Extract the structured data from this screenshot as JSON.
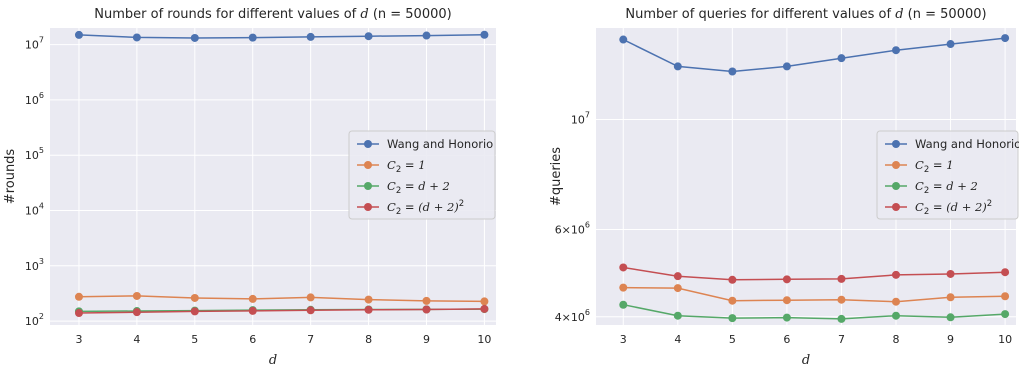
{
  "chart_data": [
    {
      "type": "line",
      "title": "Number of rounds for different values of d (n = 50000)",
      "title_parts": {
        "prefix": "Number of rounds for different values of ",
        "var": "d",
        "suffix": "(n = 50000)"
      },
      "xlabel": "d",
      "ylabel": "#rounds",
      "yscale": "log",
      "ylim": [
        85,
        20000000
      ],
      "y_ticks": [
        {
          "value": 100,
          "base": "10",
          "exp": "2"
        },
        {
          "value": 1000,
          "base": "10",
          "exp": "3"
        },
        {
          "value": 10000,
          "base": "10",
          "exp": "4"
        },
        {
          "value": 100000,
          "base": "10",
          "exp": "5"
        },
        {
          "value": 1000000,
          "base": "10",
          "exp": "6"
        },
        {
          "value": 10000000,
          "base": "10",
          "exp": "7"
        }
      ],
      "x": [
        3,
        4,
        5,
        6,
        7,
        8,
        9,
        10
      ],
      "grid": true,
      "legend_position": "center-right",
      "series": [
        {
          "name": "Wang and Honorio",
          "color": "#4c72b0",
          "values": [
            15000000,
            13500000,
            13200000,
            13400000,
            13800000,
            14200000,
            14600000,
            15100000
          ]
        },
        {
          "name": "C2 = 1",
          "color": "#dd8452",
          "values": [
            275,
            285,
            262,
            252,
            268,
            245,
            232,
            227
          ]
        },
        {
          "name": "C2 = d + 2",
          "color": "#55a868",
          "values": [
            150,
            152,
            155,
            158,
            160,
            162,
            163,
            165
          ]
        },
        {
          "name": "C2 = (d + 2)^2",
          "color": "#c44e52",
          "values": [
            140,
            145,
            150,
            153,
            157,
            160,
            162,
            166
          ]
        }
      ]
    },
    {
      "type": "line",
      "title": "Number of queries for different values of d (n = 50000)",
      "title_parts": {
        "prefix": "Number of queries for different values of ",
        "var": "d",
        "suffix": "(n = 50000)"
      },
      "xlabel": "d",
      "ylabel": "#queries",
      "yscale": "log",
      "ylim": [
        3850000,
        15300000
      ],
      "y_ticks": [
        {
          "value": 4000000,
          "mult": "4×",
          "base": "10",
          "exp": "6"
        },
        {
          "value": 6000000,
          "mult": "6×",
          "base": "10",
          "exp": "6"
        },
        {
          "value": 10000000,
          "mult": "",
          "base": "10",
          "exp": "7"
        }
      ],
      "x": [
        3,
        4,
        5,
        6,
        7,
        8,
        9,
        10
      ],
      "grid": true,
      "legend_position": "center-right",
      "series": [
        {
          "name": "Wang and Honorio",
          "color": "#4c72b0",
          "values": [
            14500000,
            12800000,
            12500000,
            12800000,
            13300000,
            13800000,
            14200000,
            14600000
          ]
        },
        {
          "name": "C2 = 1",
          "color": "#dd8452",
          "values": [
            4580000,
            4570000,
            4310000,
            4320000,
            4330000,
            4290000,
            4380000,
            4400000
          ]
        },
        {
          "name": "C2 = d + 2",
          "color": "#55a868",
          "values": [
            4230000,
            4020000,
            3975000,
            3985000,
            3960000,
            4020000,
            3990000,
            4050000
          ]
        },
        {
          "name": "C2 = (d + 2)^2",
          "color": "#c44e52",
          "values": [
            5030000,
            4830000,
            4750000,
            4760000,
            4770000,
            4860000,
            4880000,
            4920000
          ]
        }
      ]
    }
  ]
}
